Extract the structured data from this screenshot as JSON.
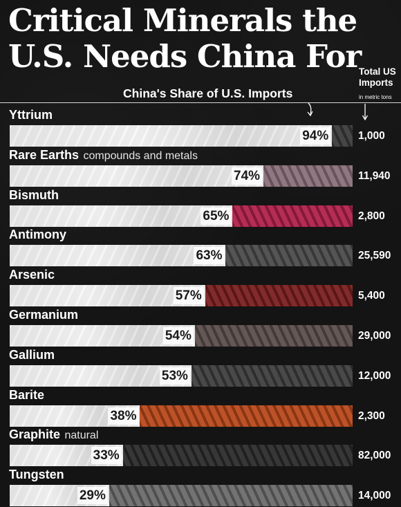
{
  "title_line1": "Critical Minerals the",
  "title_line2": "U.S. Needs China For",
  "share_label": "China's Share of U.S. Imports",
  "imports_label": "Total US Imports",
  "imports_sub": "in metric tons",
  "chart_data": {
    "type": "bar",
    "title": "Critical Minerals the U.S. Needs China For",
    "xlabel": "China's Share of U.S. Imports",
    "xlim": [
      0,
      100
    ],
    "series": [
      {
        "name": "China's Share of U.S. Imports",
        "unit": "%"
      },
      {
        "name": "Total US Imports",
        "unit": "in metric tons"
      }
    ],
    "rows": [
      {
        "name": "Yttrium",
        "note": "",
        "share": 94,
        "share_label": "94%",
        "imports": 1000,
        "imports_label": "1,000",
        "color": "#3a3a3a"
      },
      {
        "name": "Rare Earths",
        "note": "compounds and metals",
        "share": 74,
        "share_label": "74%",
        "imports": 11940,
        "imports_label": "11,940",
        "color": "#8a6f7a"
      },
      {
        "name": "Bismuth",
        "note": "",
        "share": 65,
        "share_label": "65%",
        "imports": 2800,
        "imports_label": "2,800",
        "color": "#b0204a"
      },
      {
        "name": "Antimony",
        "note": "",
        "share": 63,
        "share_label": "63%",
        "imports": 25590,
        "imports_label": "25,590",
        "color": "#4a4a4a"
      },
      {
        "name": "Arsenic",
        "note": "",
        "share": 57,
        "share_label": "57%",
        "imports": 5400,
        "imports_label": "5,400",
        "color": "#7a1e1e"
      },
      {
        "name": "Germanium",
        "note": "",
        "share": 54,
        "share_label": "54%",
        "imports": 29000,
        "imports_label": "29,000",
        "color": "#5a4d4a"
      },
      {
        "name": "Gallium",
        "note": "",
        "share": 53,
        "share_label": "53%",
        "imports": 12000,
        "imports_label": "12,000",
        "color": "#3e3e3e"
      },
      {
        "name": "Barite",
        "note": "",
        "share": 38,
        "share_label": "38%",
        "imports": 2300,
        "imports_label": "2,300",
        "color": "#b8471a"
      },
      {
        "name": "Graphite",
        "note": "natural",
        "share": 33,
        "share_label": "33%",
        "imports": 82000,
        "imports_label": "82,000",
        "color": "#2b2b2b"
      },
      {
        "name": "Tungsten",
        "note": "",
        "share": 29,
        "share_label": "29%",
        "imports": 14000,
        "imports_label": "14,000",
        "color": "#6a6a6a"
      }
    ]
  }
}
